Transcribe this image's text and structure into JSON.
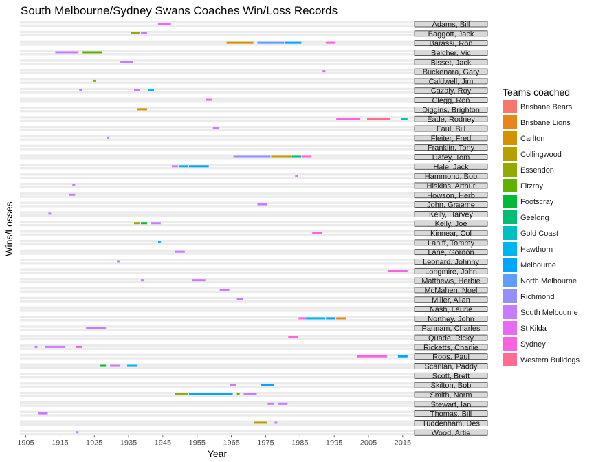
{
  "chart_data": {
    "type": "bar",
    "title": "South Melbourne/Sydney Swans Coaches Win/Loss Records",
    "xlabel": "Year",
    "ylabel": "Wins/Losses",
    "xlim": [
      1902,
      2025
    ],
    "x_ticks": [
      "1905",
      "1915",
      "1925",
      "1935",
      "1945",
      "1955",
      "1965",
      "1975",
      "1985",
      "1995",
      "2005",
      "2015"
    ],
    "legend": {
      "title": "Teams coached",
      "position": "right",
      "teams": [
        {
          "name": "Brisbane Bears",
          "color": "#F8766D"
        },
        {
          "name": "Brisbane Lions",
          "color": "#E7861B"
        },
        {
          "name": "Carlton",
          "color": "#D39200"
        },
        {
          "name": "Collingwood",
          "color": "#B79F00"
        },
        {
          "name": "Essendon",
          "color": "#93AA00"
        },
        {
          "name": "Fitzroy",
          "color": "#5EB300"
        },
        {
          "name": "Footscray",
          "color": "#00BA38"
        },
        {
          "name": "Geelong",
          "color": "#00BF74"
        },
        {
          "name": "Gold Coast",
          "color": "#00BFC4"
        },
        {
          "name": "Hawthorn",
          "color": "#00B4EF"
        },
        {
          "name": "Melbourne",
          "color": "#00A5FF"
        },
        {
          "name": "North Melbourne",
          "color": "#619CFF"
        },
        {
          "name": "Richmond",
          "color": "#9590FF"
        },
        {
          "name": "South Melbourne",
          "color": "#C77CFF"
        },
        {
          "name": "St Kilda",
          "color": "#E76BF3"
        },
        {
          "name": "Sydney",
          "color": "#F763E0"
        },
        {
          "name": "Western Bulldogs",
          "color": "#FF6C91"
        }
      ]
    },
    "coaches": [
      {
        "name": "Adams, Bill",
        "stints": [
          {
            "team": "St Kilda",
            "from": 1944,
            "to": 1947
          }
        ]
      },
      {
        "name": "Baggott, Jack",
        "stints": [
          {
            "team": "Essendon",
            "from": 1936,
            "to": 1938
          },
          {
            "team": "South Melbourne",
            "from": 1939,
            "to": 1940
          }
        ]
      },
      {
        "name": "Barassi, Ron",
        "stints": [
          {
            "team": "Carlton",
            "from": 1964,
            "to": 1971
          },
          {
            "team": "North Melbourne",
            "from": 1973,
            "to": 1980
          },
          {
            "team": "Melbourne",
            "from": 1981,
            "to": 1985
          },
          {
            "team": "Sydney",
            "from": 1993,
            "to": 1995
          }
        ]
      },
      {
        "name": "Belcher, Vic",
        "stints": [
          {
            "team": "South Melbourne",
            "from": 1914,
            "to": 1920
          },
          {
            "team": "Fitzroy",
            "from": 1922,
            "to": 1927
          }
        ]
      },
      {
        "name": "Bisset, Jack",
        "stints": [
          {
            "team": "South Melbourne",
            "from": 1933,
            "to": 1936
          }
        ]
      },
      {
        "name": "Buckenara, Gary",
        "stints": [
          {
            "team": "Sydney",
            "from": 1992,
            "to": 1992
          }
        ]
      },
      {
        "name": "Caldwell, Jim",
        "stints": [
          {
            "team": "Essendon",
            "from": 1925,
            "to": 1925
          }
        ]
      },
      {
        "name": "Cazaly, Roy",
        "stints": [
          {
            "team": "South Melbourne",
            "from": 1921,
            "to": 1921
          },
          {
            "team": "South Melbourne",
            "from": 1937,
            "to": 1938
          },
          {
            "team": "Hawthorn",
            "from": 1941,
            "to": 1942
          }
        ]
      },
      {
        "name": "Clegg, Ron",
        "stints": [
          {
            "team": "St Kilda",
            "from": 1958,
            "to": 1959
          }
        ]
      },
      {
        "name": "Diggins, Brighton",
        "stints": [
          {
            "team": "Carlton",
            "from": 1938,
            "to": 1940
          }
        ]
      },
      {
        "name": "Eade, Rodney",
        "stints": [
          {
            "team": "Sydney",
            "from": 1996,
            "to": 2002
          },
          {
            "team": "Western Bulldogs",
            "from": 2005,
            "to": 2011
          },
          {
            "team": "Gold Coast",
            "from": 2015,
            "to": 2016
          }
        ]
      },
      {
        "name": "Faul, Bill",
        "stints": [
          {
            "team": "South Melbourne",
            "from": 1960,
            "to": 1961
          }
        ]
      },
      {
        "name": "Fleiter, Fred",
        "stints": [
          {
            "team": "Richmond",
            "from": 1929,
            "to": 1929
          }
        ]
      },
      {
        "name": "Franklin, Tony",
        "stints": []
      },
      {
        "name": "Hafey, Tom",
        "stints": [
          {
            "team": "Richmond",
            "from": 1966,
            "to": 1976
          },
          {
            "team": "Collingwood",
            "from": 1977,
            "to": 1982
          },
          {
            "team": "Geelong",
            "from": 1983,
            "to": 1985
          },
          {
            "team": "Sydney",
            "from": 1986,
            "to": 1988
          }
        ]
      },
      {
        "name": "Hale, Jack",
        "stints": [
          {
            "team": "South Melbourne",
            "from": 1948,
            "to": 1949
          },
          {
            "team": "Hawthorn",
            "from": 1950,
            "to": 1952
          },
          {
            "team": "Melbourne",
            "from": 1953,
            "to": 1958
          }
        ]
      },
      {
        "name": "Hammond, Bob",
        "stints": [
          {
            "team": "Sydney",
            "from": 1984,
            "to": 1984
          }
        ]
      },
      {
        "name": "Hiskins, Arthur",
        "stints": [
          {
            "team": "South Melbourne",
            "from": 1919,
            "to": 1919
          }
        ]
      },
      {
        "name": "Howson, Herb",
        "stints": [
          {
            "team": "South Melbourne",
            "from": 1918,
            "to": 1919
          }
        ]
      },
      {
        "name": "John, Graeme",
        "stints": [
          {
            "team": "South Melbourne",
            "from": 1973,
            "to": 1975
          }
        ]
      },
      {
        "name": "Kelly, Harvey",
        "stints": [
          {
            "team": "South Melbourne",
            "from": 1912,
            "to": 1912
          }
        ]
      },
      {
        "name": "Kelly, Joe",
        "stints": [
          {
            "team": "Essendon",
            "from": 1937,
            "to": 1938
          },
          {
            "team": "Footscray",
            "from": 1939,
            "to": 1940
          },
          {
            "team": "South Melbourne",
            "from": 1942,
            "to": 1944
          }
        ]
      },
      {
        "name": "Kinnear, Col",
        "stints": [
          {
            "team": "Sydney",
            "from": 1989,
            "to": 1991
          }
        ]
      },
      {
        "name": "Lahiff, Tommy",
        "stints": [
          {
            "team": "Hawthorn",
            "from": 1944,
            "to": 1944
          }
        ]
      },
      {
        "name": "Lane, Gordon",
        "stints": [
          {
            "team": "South Melbourne",
            "from": 1949,
            "to": 1951
          }
        ]
      },
      {
        "name": "Leonard, Johnny",
        "stints": [
          {
            "team": "South Melbourne",
            "from": 1932,
            "to": 1932
          }
        ]
      },
      {
        "name": "Longmire, John",
        "stints": [
          {
            "team": "Sydney",
            "from": 2011,
            "to": 2016
          }
        ]
      },
      {
        "name": "Matthews, Herbie",
        "stints": [
          {
            "team": "South Melbourne",
            "from": 1939,
            "to": 1939
          },
          {
            "team": "South Melbourne",
            "from": 1954,
            "to": 1957
          }
        ]
      },
      {
        "name": "McMahen, Noel",
        "stints": [
          {
            "team": "South Melbourne",
            "from": 1962,
            "to": 1964
          }
        ]
      },
      {
        "name": "Miller, Allan",
        "stints": [
          {
            "team": "South Melbourne",
            "from": 1967,
            "to": 1968
          }
        ]
      },
      {
        "name": "Nash, Laurie",
        "stints": []
      },
      {
        "name": "Northey, John",
        "stints": [
          {
            "team": "Sydney",
            "from": 1985,
            "to": 1986
          },
          {
            "team": "Hawthorn",
            "from": 1987,
            "to": 1992
          },
          {
            "team": "Melbourne",
            "from": 1993,
            "to": 1995
          },
          {
            "team": "Brisbane Lions",
            "from": 1996,
            "to": 1998
          }
        ]
      },
      {
        "name": "Pannam, Charles",
        "stints": [
          {
            "team": "South Melbourne",
            "from": 1923,
            "to": 1928
          }
        ]
      },
      {
        "name": "Quade, Ricky",
        "stints": [
          {
            "team": "Sydney",
            "from": 1982,
            "to": 1984
          }
        ]
      },
      {
        "name": "Ricketts, Charlie",
        "stints": [
          {
            "team": "South Melbourne",
            "from": 1908,
            "to": 1908
          },
          {
            "team": "South Melbourne",
            "from": 1911,
            "to": 1916
          },
          {
            "team": "Sydney",
            "from": 1920,
            "to": 1921
          }
        ]
      },
      {
        "name": "Roos, Paul",
        "stints": [
          {
            "team": "Sydney",
            "from": 2002,
            "to": 2010
          },
          {
            "team": "Melbourne",
            "from": 2014,
            "to": 2016
          }
        ]
      },
      {
        "name": "Scanlan, Paddy",
        "stints": [
          {
            "team": "Footscray",
            "from": 1927,
            "to": 1928
          },
          {
            "team": "South Melbourne",
            "from": 1930,
            "to": 1932
          },
          {
            "team": "Hawthorn",
            "from": 1935,
            "to": 1937
          }
        ]
      },
      {
        "name": "Scott, Brett",
        "stints": []
      },
      {
        "name": "Skilton, Bob",
        "stints": [
          {
            "team": "South Melbourne",
            "from": 1965,
            "to": 1966
          },
          {
            "team": "Melbourne",
            "from": 1974,
            "to": 1977
          }
        ]
      },
      {
        "name": "Smith, Norm",
        "stints": [
          {
            "team": "Essendon",
            "from": 1949,
            "to": 1952
          },
          {
            "team": "Melbourne",
            "from": 1953,
            "to": 1965
          },
          {
            "team": "Fitzroy",
            "from": 1967,
            "to": 1967
          },
          {
            "team": "South Melbourne",
            "from": 1969,
            "to": 1972
          }
        ]
      },
      {
        "name": "Stewart, Ian",
        "stints": [
          {
            "team": "South Melbourne",
            "from": 1976,
            "to": 1977
          },
          {
            "team": "South Melbourne",
            "from": 1979,
            "to": 1981
          }
        ]
      },
      {
        "name": "Thomas, Bill",
        "stints": [
          {
            "team": "South Melbourne",
            "from": 1909,
            "to": 1911
          }
        ]
      },
      {
        "name": "Tuddenham, Des",
        "stints": [
          {
            "team": "Collingwood",
            "from": 1972,
            "to": 1975
          },
          {
            "team": "South Melbourne",
            "from": 1978,
            "to": 1978
          }
        ]
      },
      {
        "name": "Wood, Artie",
        "stints": [
          {
            "team": "South Melbourne",
            "from": 1920,
            "to": 1920
          }
        ]
      }
    ]
  }
}
